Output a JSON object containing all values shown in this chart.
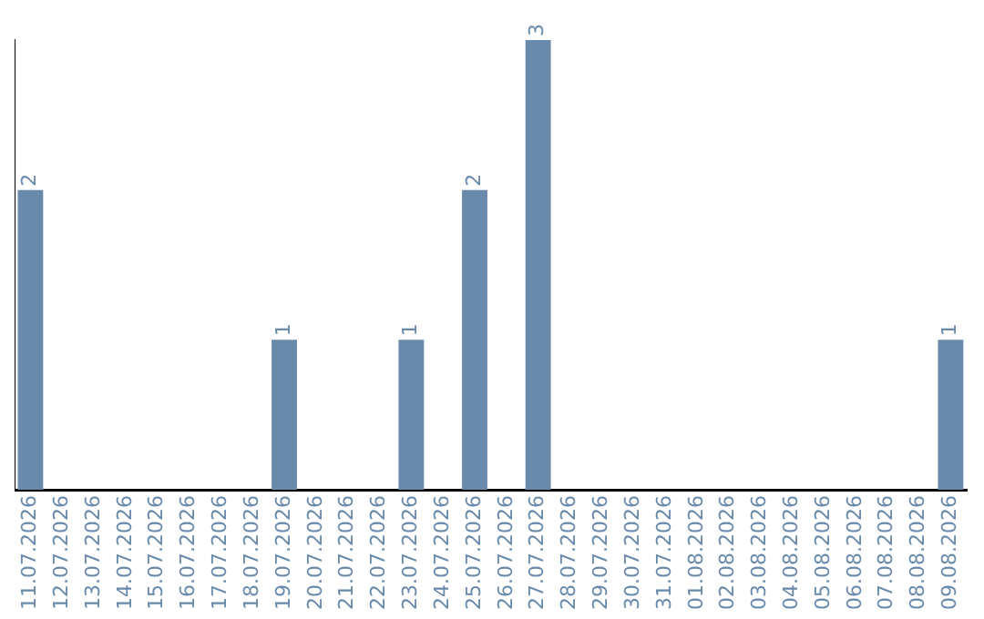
{
  "chart_data": {
    "type": "bar",
    "categories": [
      "11.07.2026",
      "12.07.2026",
      "13.07.2026",
      "14.07.2026",
      "15.07.2026",
      "16.07.2026",
      "17.07.2026",
      "18.07.2026",
      "19.07.2026",
      "20.07.2026",
      "21.07.2026",
      "22.07.2026",
      "23.07.2026",
      "24.07.2026",
      "25.07.2026",
      "26.07.2026",
      "27.07.2026",
      "28.07.2026",
      "29.07.2026",
      "30.07.2026",
      "31.07.2026",
      "01.08.2026",
      "02.08.2026",
      "03.08.2026",
      "04.08.2026",
      "05.08.2026",
      "06.08.2026",
      "07.08.2026",
      "08.08.2026",
      "09.08.2026"
    ],
    "values": [
      2,
      0,
      0,
      0,
      0,
      0,
      0,
      0,
      1,
      0,
      0,
      0,
      1,
      0,
      2,
      0,
      3,
      0,
      0,
      0,
      0,
      0,
      0,
      0,
      0,
      0,
      0,
      0,
      0,
      1
    ],
    "value_labels": [
      "2",
      null,
      null,
      null,
      null,
      null,
      null,
      null,
      "1",
      null,
      null,
      null,
      "1",
      null,
      "2",
      null,
      "3",
      null,
      null,
      null,
      null,
      null,
      null,
      null,
      null,
      null,
      null,
      null,
      null,
      "1"
    ],
    "color": "#6a8aab",
    "grid": false,
    "legend": false
  }
}
